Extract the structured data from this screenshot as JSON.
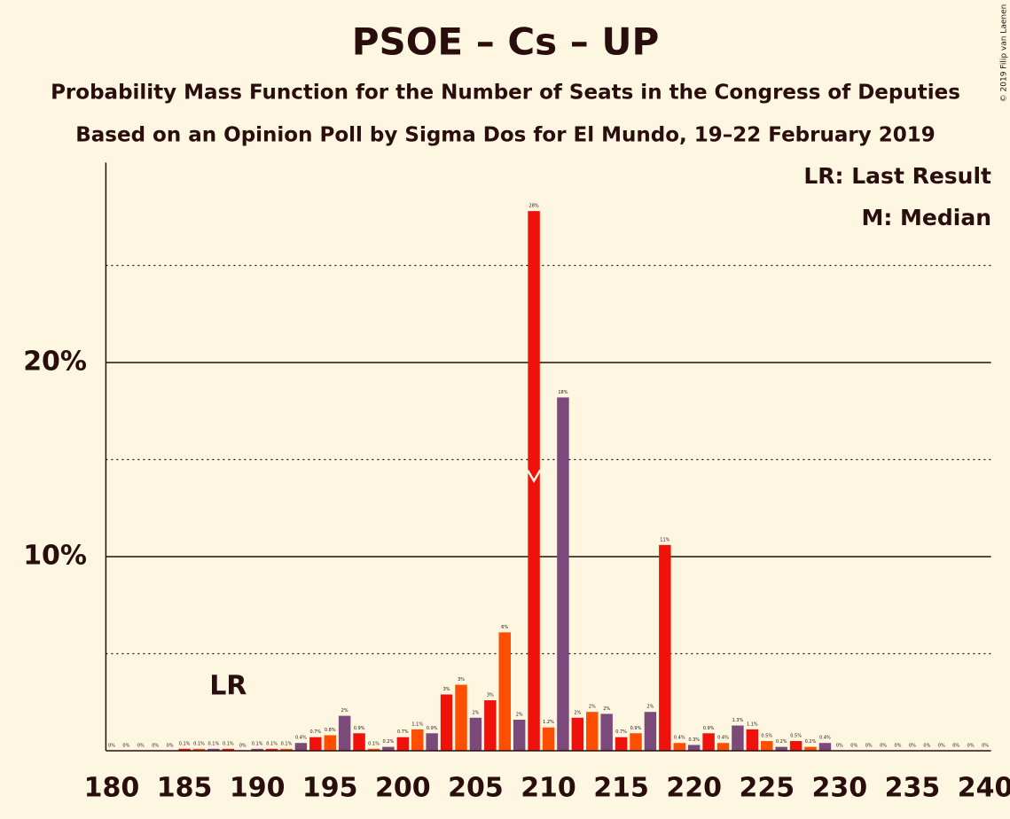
{
  "chart_data": {
    "type": "bar",
    "title": "PSOE – Cs – UP",
    "subtitle": "Probability Mass Function for the Number of Seats in the Congress of Deputies",
    "subtitle2": "Based on an Opinion Poll by Sigma Dos for El Mundo, 19–22 February 2019",
    "copyright": "© 2019 Filip van Laenen",
    "legend": [
      "LR: Last Result",
      "M: Median"
    ],
    "last_result_label": "LR",
    "last_result": 188,
    "median": 209,
    "colors": [
      "#ff4e00",
      "#7b4a7b",
      "#f0120a"
    ],
    "x": [
      180,
      181,
      182,
      183,
      184,
      185,
      186,
      187,
      188,
      189,
      190,
      191,
      192,
      193,
      194,
      195,
      196,
      197,
      198,
      199,
      200,
      201,
      202,
      203,
      204,
      205,
      206,
      207,
      208,
      209,
      210,
      211,
      212,
      213,
      214,
      215,
      216,
      217,
      218,
      219,
      220,
      221,
      222,
      223,
      224,
      225,
      226,
      227,
      228,
      229,
      230,
      231,
      232,
      233,
      234,
      235,
      236,
      237,
      238,
      239,
      240
    ],
    "values": [
      0,
      0,
      0,
      0,
      0,
      0.1,
      0.1,
      0.1,
      0.1,
      0,
      0.1,
      0.1,
      0.1,
      0.4,
      0.7,
      0.8,
      1.8,
      0.9,
      0.1,
      0.2,
      0.7,
      1.1,
      0.9,
      2.9,
      3.4,
      1.7,
      2.6,
      6.1,
      1.6,
      27.8,
      1.2,
      18.2,
      1.7,
      2.0,
      1.9,
      0.7,
      0.9,
      2.0,
      10.6,
      0.4,
      0.3,
      0.9,
      0.4,
      1.3,
      1.1,
      0.5,
      0.2,
      0.5,
      0.2,
      0.4,
      0,
      0,
      0,
      0,
      0,
      0,
      0,
      0,
      0,
      0,
      0
    ],
    "value_labels": [
      "0%",
      "0%",
      "0%",
      "0%",
      "0%",
      "0.1%",
      "0.1%",
      "0.1%",
      "0.1%",
      "0%",
      "0.1%",
      "0.1%",
      "0.1%",
      "0.4%",
      "0.7%",
      "0.8%",
      "2%",
      "0.9%",
      "0.1%",
      "0.2%",
      "0.7%",
      "1.1%",
      "0.9%",
      "3%",
      "3%",
      "2%",
      "3%",
      "6%",
      "2%",
      "28%",
      "1.2%",
      "18%",
      "2%",
      "2%",
      "2%",
      "0.7%",
      "0.9%",
      "2%",
      "11%",
      "0.4%",
      "0.3%",
      "0.9%",
      "0.4%",
      "1.3%",
      "1.1%",
      "0.5%",
      "0.2%",
      "0.5%",
      "0.2%",
      "0.4%",
      "0%",
      "0%",
      "0%",
      "0%",
      "0%",
      "0%",
      "0%",
      "0%",
      "0%",
      "0%",
      "0%"
    ],
    "xlim": [
      179.6,
      240.4
    ],
    "xticks": [
      180,
      185,
      190,
      195,
      200,
      205,
      210,
      215,
      220,
      225,
      230,
      235,
      240
    ],
    "ylim": [
      0,
      30.3
    ],
    "yticks": [
      {
        "value": 10,
        "label": "10%"
      },
      {
        "value": 20,
        "label": "20%"
      }
    ],
    "minor_yticks": [
      5,
      15,
      25
    ],
    "grid": true
  }
}
